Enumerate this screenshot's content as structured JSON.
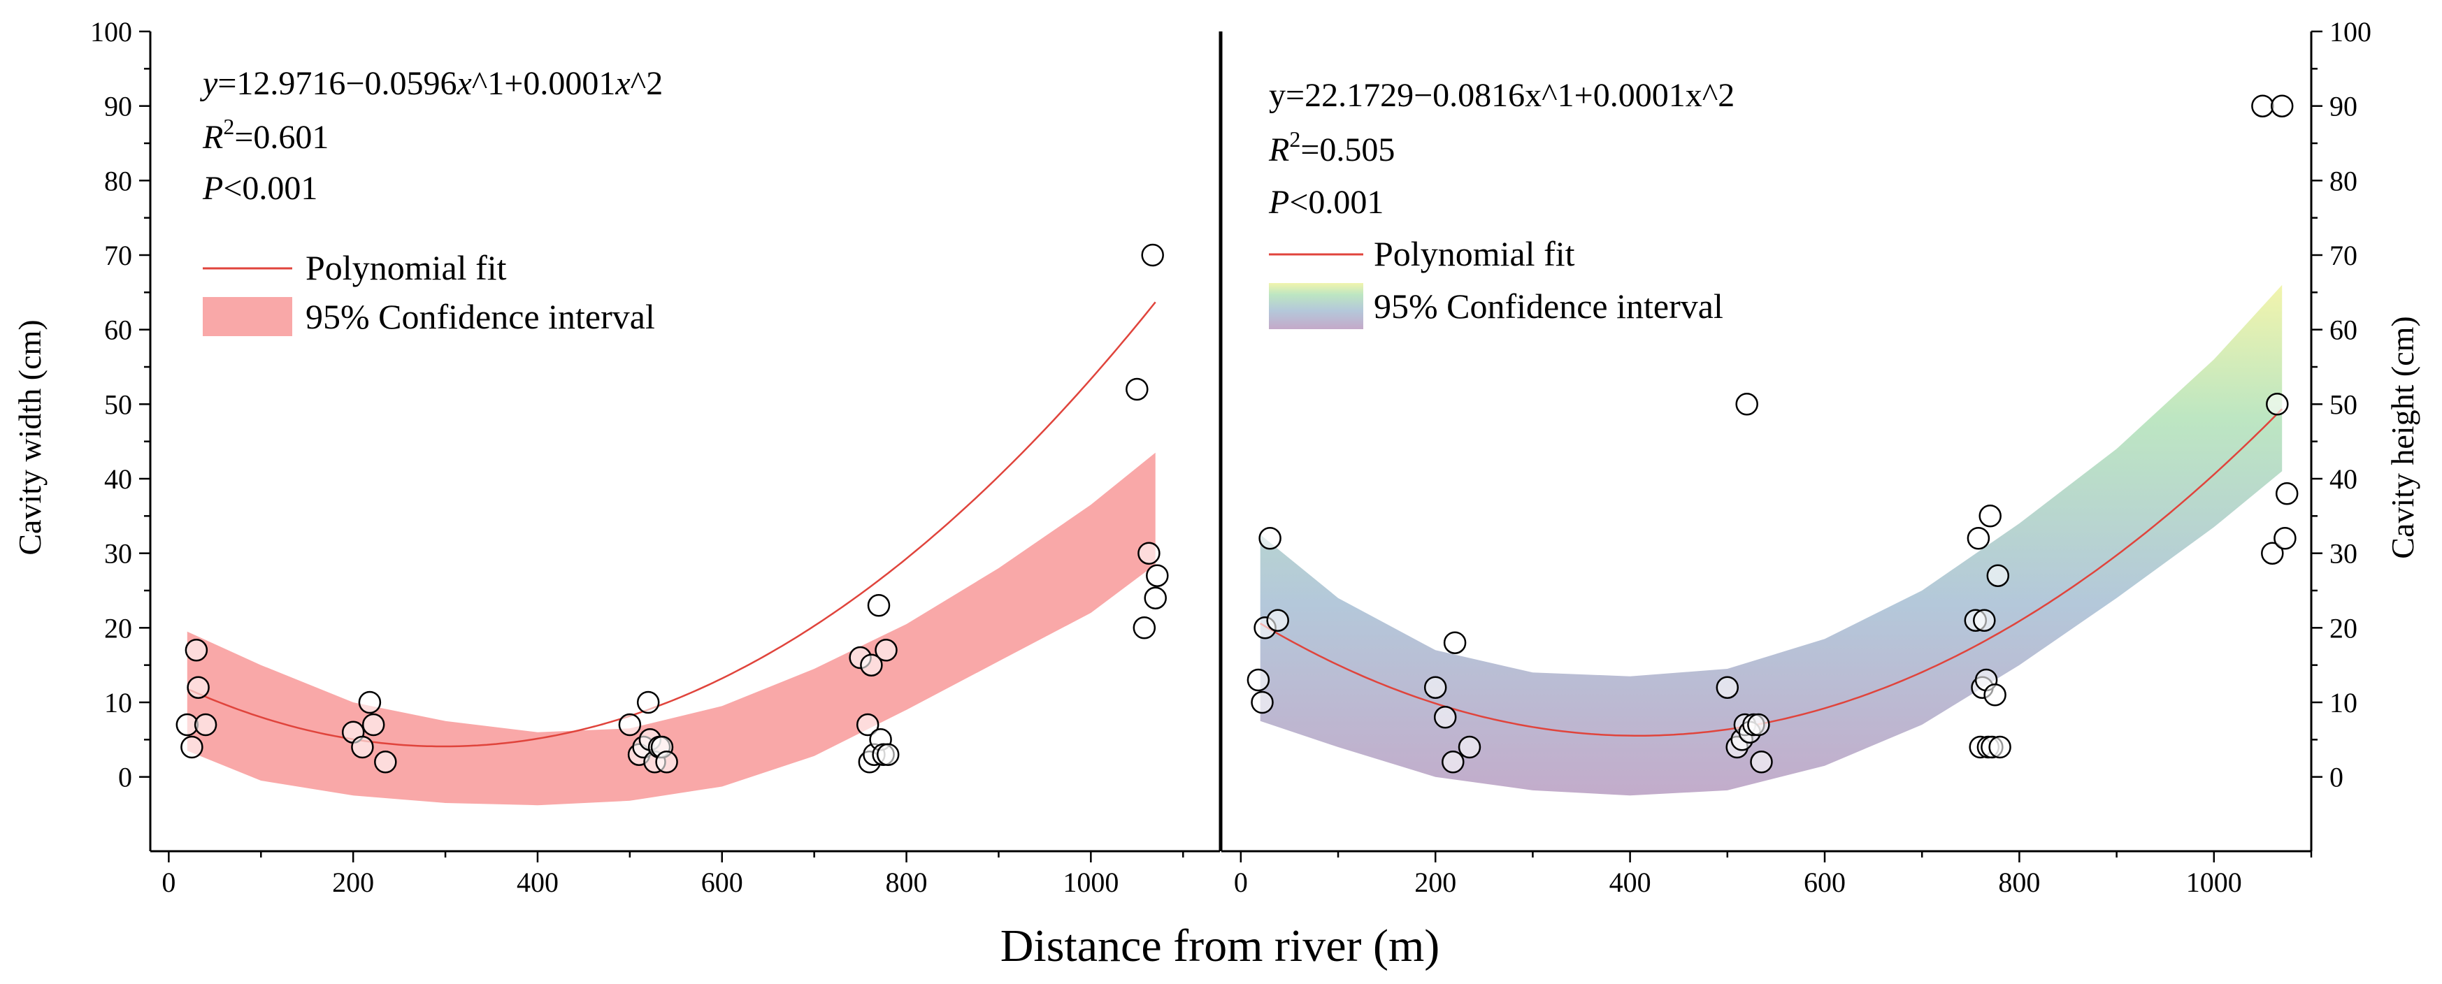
{
  "figure": {
    "xlabel": "Distance from river (m)"
  },
  "chart_data": [
    {
      "type": "scatter",
      "title": "",
      "xlabel": "Distance from river (m)",
      "ylabel": "Cavity width (cm)",
      "xlim": [
        -20,
        1140
      ],
      "ylim": [
        -5,
        100
      ],
      "xticks": [
        0,
        200,
        400,
        600,
        800,
        1000
      ],
      "yticks": [
        0,
        10,
        20,
        30,
        40,
        50,
        60,
        70,
        80,
        90,
        100
      ],
      "equation": {
        "y": "y",
        "rest": "=12.9716−0.0596",
        "x1": "x",
        "mid": "^1+0.0001",
        "x2": "x",
        "end": "^2"
      },
      "r2": {
        "r": "R",
        "sup": "2",
        "value": "=0.601"
      },
      "p": {
        "p": "P",
        "value": "<0.001"
      },
      "legend": {
        "fit": "Polynomial fit",
        "ci": "95% Confidence interval",
        "fit_color": "#e0443c",
        "ci_color": "#f9a8a8"
      },
      "fit": {
        "a": 12.9716,
        "b": -0.0596,
        "c": 0.0001,
        "x_range": [
          20,
          1070
        ]
      },
      "ci_band": {
        "x": [
          20,
          100,
          200,
          300,
          400,
          500,
          600,
          700,
          800,
          900,
          1000,
          1070
        ],
        "lower": [
          3.5,
          -0.5,
          -2.5,
          -3.5,
          -3.8,
          -3.2,
          -1.3,
          2.8,
          9.0,
          15.5,
          22.0,
          28.5
        ],
        "upper": [
          19.5,
          15.0,
          10.0,
          7.5,
          6.0,
          6.5,
          9.5,
          14.5,
          20.5,
          28.0,
          36.5,
          43.5
        ]
      },
      "points": [
        [
          20,
          7
        ],
        [
          25,
          4
        ],
        [
          30,
          17
        ],
        [
          32,
          12
        ],
        [
          40,
          7
        ],
        [
          200,
          6
        ],
        [
          210,
          4
        ],
        [
          218,
          10
        ],
        [
          222,
          7
        ],
        [
          235,
          2
        ],
        [
          500,
          7
        ],
        [
          510,
          3
        ],
        [
          515,
          4
        ],
        [
          520,
          10
        ],
        [
          522,
          5
        ],
        [
          527,
          2
        ],
        [
          532,
          4
        ],
        [
          535,
          4
        ],
        [
          540,
          2
        ],
        [
          750,
          16
        ],
        [
          758,
          7
        ],
        [
          760,
          2
        ],
        [
          762,
          15
        ],
        [
          765,
          3
        ],
        [
          770,
          23
        ],
        [
          772,
          5
        ],
        [
          775,
          3
        ],
        [
          778,
          17
        ],
        [
          780,
          3
        ],
        [
          1050,
          52
        ],
        [
          1058,
          20
        ],
        [
          1063,
          30
        ],
        [
          1067,
          70
        ],
        [
          1070,
          24
        ],
        [
          1072,
          27
        ]
      ]
    },
    {
      "type": "scatter",
      "title": "",
      "xlabel": "Distance from river (m)",
      "ylabel": "Cavity height (cm)",
      "xlim": [
        -20,
        1100
      ],
      "ylim": [
        -5,
        100
      ],
      "xticks": [
        0,
        200,
        400,
        600,
        800,
        1000
      ],
      "yticks": [
        0,
        10,
        20,
        30,
        40,
        50,
        60,
        70,
        80,
        90,
        100
      ],
      "equation": {
        "text": "y=22.1729−0.0816x^1+0.0001x^2"
      },
      "r2": {
        "r": "R",
        "sup": "2",
        "value": "=0.505"
      },
      "p": {
        "p": "P",
        "value": "<0.001"
      },
      "legend": {
        "fit": "Polynomial fit",
        "ci": "95% Confidence interval",
        "fit_color": "#e0443c",
        "gradient_colors": [
          "#f1f4ad",
          "#bde6c2",
          "#b4c8da",
          "#c4a9c9"
        ]
      },
      "fit": {
        "a": 22.1729,
        "b": -0.0816,
        "c": 0.0001,
        "x_range": [
          20,
          1070
        ]
      },
      "ci_band": {
        "x": [
          20,
          100,
          200,
          300,
          400,
          500,
          600,
          700,
          800,
          900,
          1000,
          1070
        ],
        "lower": [
          7.5,
          4.0,
          0.0,
          -1.8,
          -2.5,
          -1.8,
          1.5,
          7.0,
          15.0,
          24.0,
          33.5,
          41.0
        ],
        "upper": [
          32.5,
          24.0,
          17.0,
          14.0,
          13.5,
          14.5,
          18.5,
          25.0,
          34.0,
          44.0,
          56.0,
          66.0
        ]
      },
      "points": [
        [
          18,
          13
        ],
        [
          22,
          10
        ],
        [
          25,
          20
        ],
        [
          30,
          32
        ],
        [
          38,
          21
        ],
        [
          200,
          12
        ],
        [
          210,
          8
        ],
        [
          218,
          2
        ],
        [
          220,
          18
        ],
        [
          235,
          4
        ],
        [
          500,
          12
        ],
        [
          510,
          4
        ],
        [
          515,
          5
        ],
        [
          518,
          7
        ],
        [
          520,
          50
        ],
        [
          523,
          6
        ],
        [
          527,
          7
        ],
        [
          532,
          7
        ],
        [
          535,
          2
        ],
        [
          755,
          21
        ],
        [
          758,
          32
        ],
        [
          760,
          4
        ],
        [
          762,
          12
        ],
        [
          764,
          21
        ],
        [
          766,
          13
        ],
        [
          768,
          4
        ],
        [
          770,
          35
        ],
        [
          772,
          4
        ],
        [
          775,
          11
        ],
        [
          778,
          27
        ],
        [
          780,
          4
        ],
        [
          1050,
          90
        ],
        [
          1060,
          30
        ],
        [
          1065,
          50
        ],
        [
          1070,
          90
        ],
        [
          1073,
          32
        ],
        [
          1075,
          38
        ]
      ]
    }
  ]
}
